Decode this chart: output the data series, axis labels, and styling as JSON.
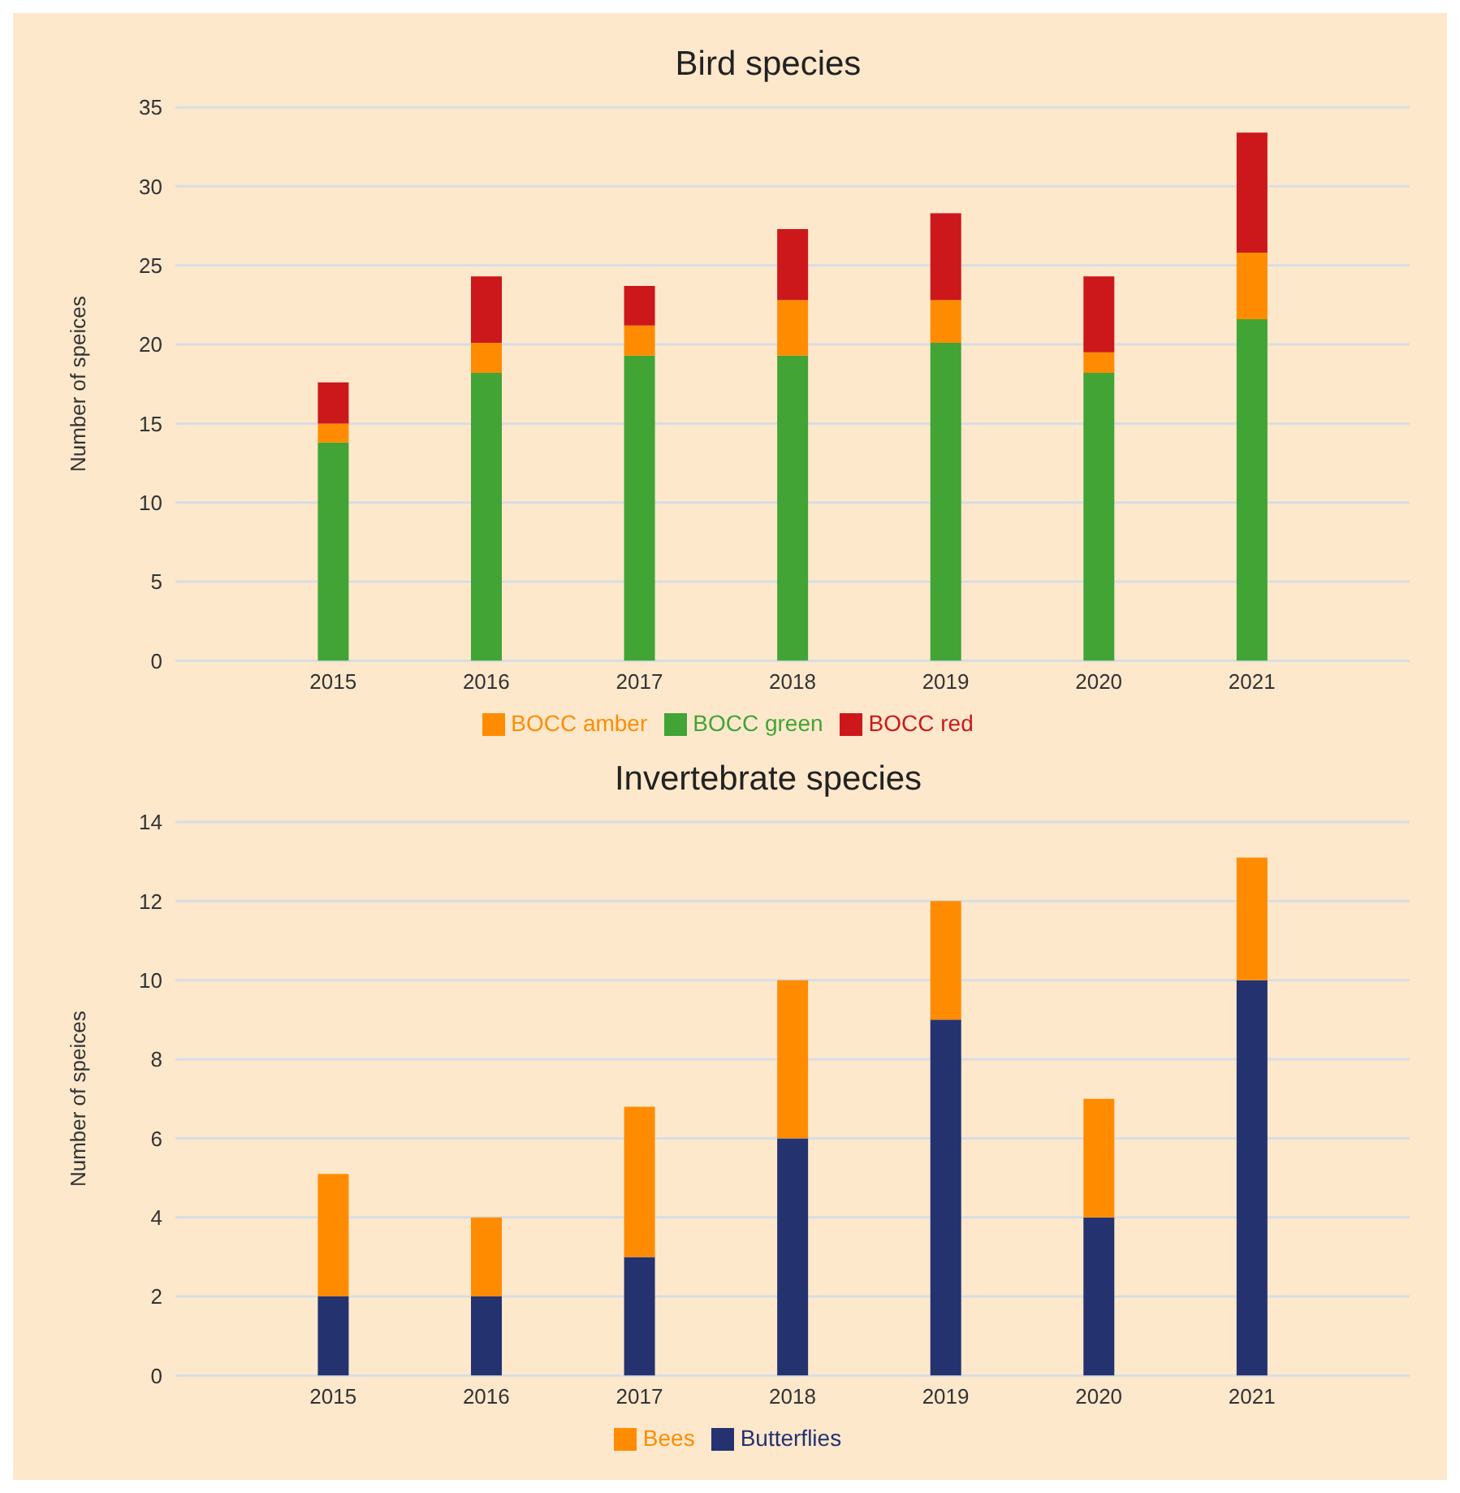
{
  "chart_data": [
    {
      "type": "bar",
      "title": "Bird species",
      "ylabel": "Number of speices",
      "categories": [
        "2015",
        "2016",
        "2017",
        "2018",
        "2019",
        "2020",
        "2021"
      ],
      "stacked": true,
      "series": [
        {
          "name": "BOCC green",
          "color": "#41a435",
          "values": [
            13.8,
            18.2,
            19.3,
            19.3,
            20.1,
            18.2,
            21.6
          ]
        },
        {
          "name": "BOCC amber",
          "color": "#ff8c00",
          "values": [
            1.2,
            1.9,
            1.9,
            3.5,
            2.7,
            1.3,
            4.2
          ]
        },
        {
          "name": "BOCC red",
          "color": "#cc181a",
          "values": [
            2.6,
            4.2,
            2.5,
            4.5,
            5.5,
            4.8,
            7.6
          ]
        }
      ],
      "ylim": [
        0,
        35
      ],
      "yticks": [
        0,
        5,
        10,
        15,
        20,
        25,
        30,
        35
      ],
      "grid": "y",
      "legend": "bottom"
    },
    {
      "type": "bar",
      "title": "Invertebrate species",
      "ylabel": "Number of speices",
      "categories": [
        "2015",
        "2016",
        "2017",
        "2018",
        "2019",
        "2020",
        "2021"
      ],
      "stacked": true,
      "series": [
        {
          "name": "Butterflies",
          "color": "#243270",
          "values": [
            2,
            2,
            3,
            6,
            9,
            4,
            10
          ]
        },
        {
          "name": "Bees",
          "color": "#ff8c00",
          "values": [
            3.1,
            2,
            3.8,
            4,
            3,
            3,
            3.1
          ]
        }
      ],
      "ylim": [
        0,
        14
      ],
      "yticks": [
        0,
        2,
        4,
        6,
        8,
        10,
        12,
        14
      ],
      "grid": "y",
      "legend": "bottom"
    }
  ]
}
